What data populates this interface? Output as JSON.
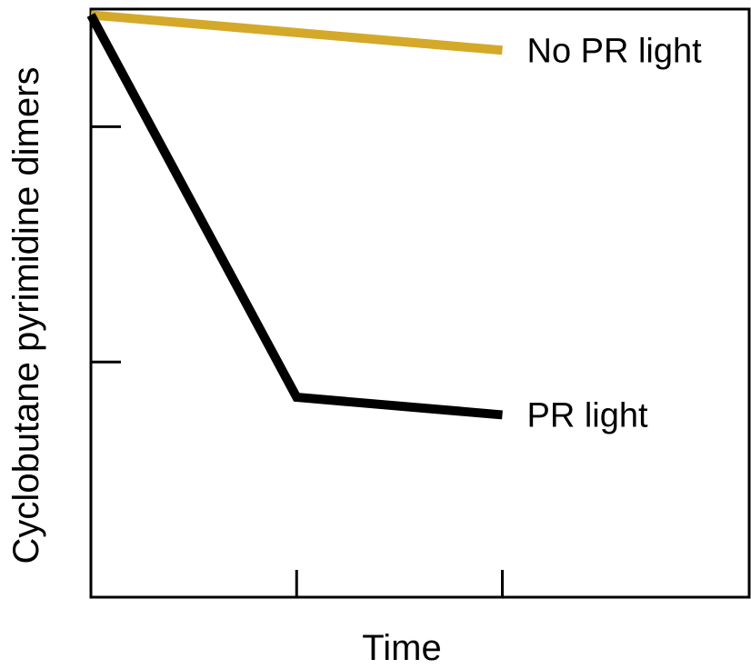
{
  "chart_data": {
    "type": "line",
    "title": "",
    "xlabel": "Time",
    "ylabel": "Cyclobutane pyrimidine dimers",
    "x": [
      0,
      1,
      2
    ],
    "xlim": [
      0,
      3.2
    ],
    "ylim": [
      0,
      100
    ],
    "x_ticks": [
      1,
      2
    ],
    "y_ticks": [
      40,
      80
    ],
    "grid": false,
    "legend": "none",
    "series": [
      {
        "name": "No PR light",
        "color": "#d4a92a",
        "x": [
          0,
          2
        ],
        "values": [
          99,
          93
        ]
      },
      {
        "name": "PR light",
        "color": "#000000",
        "x": [
          0,
          1,
          2
        ],
        "values": [
          99,
          34,
          31
        ]
      }
    ]
  }
}
